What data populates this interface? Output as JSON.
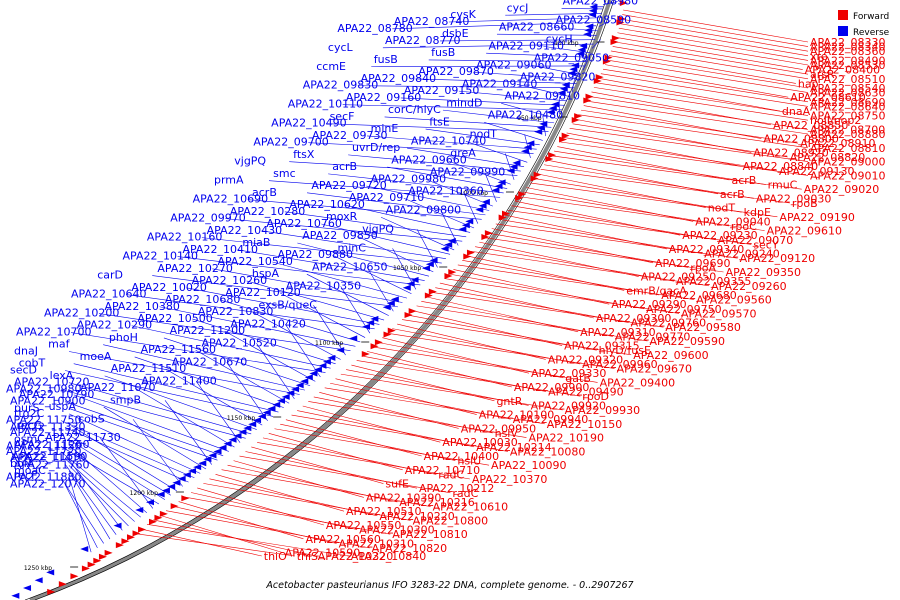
{
  "title": "Acetobacter pasteurianus IFO 3283-22 DNA, complete genome. - 0..2907267",
  "legend": [
    {
      "name": "Forward",
      "color": "#ee0000"
    },
    {
      "name": "Reverse",
      "color": "#0000ee"
    }
  ],
  "colors": {
    "forward": "#ee0000",
    "reverse": "#0000ee",
    "backbone": "#888888",
    "tick": "#000000"
  },
  "ticks": [
    "900 kbp",
    "950 kbp",
    "1000 kbp",
    "1050 kbp",
    "1100 kbp",
    "1150 kbp",
    "1200 kbp",
    "1250 kbp"
  ],
  "reverse_labels": [
    "APA22_08980",
    "cycJ",
    "cysK",
    "APA22_08740",
    "APA22_08780",
    "APA22_08590",
    "APA22_08660",
    "dsbE",
    "APA22_08770",
    "cycL",
    "cycH",
    "APA22_09110",
    "fusB",
    "fusB",
    "ccmE",
    "APA22_09050",
    "APA22_09060",
    "APA22_09870",
    "APA22_09840",
    "APA22_09830",
    "APA22_09820",
    "APA22_09140",
    "APA22_09150",
    "APA22_09160",
    "APA22_10110",
    "APA22_09810",
    "mindD",
    "corC/hlyC",
    "secF",
    "APA22_10490",
    "APA22_10480",
    "ftsE",
    "minE",
    "APA22_09730",
    "APA22_09700",
    "nodT",
    "APA22_10740",
    "uvrD/rep",
    "ftsX",
    "vjgPQ",
    "greA",
    "APA22_09660",
    "acrB",
    "smc",
    "prmA",
    "APA22_09990",
    "APA22_09980",
    "APA22_09720",
    "acrB",
    "APA22_10690",
    "APA22_10360",
    "APA22_09710",
    "APA22_10620",
    "APA22_10280",
    "APA22_09970",
    "APA22_09800",
    "moxR",
    "APA22_10760",
    "APA22_10430",
    "APA22_10160",
    "vjgPQ",
    "APA22_09850",
    "miaB",
    "APA22_10410",
    "APA22_10140",
    "minC",
    "APA22_09880",
    "APA22_10540",
    "APA22_10270",
    "carD",
    "APA22_10650",
    "hspA",
    "APA22_10260",
    "APA22_10020",
    "APA22_10640",
    "APA22_10350",
    "APA22_10120",
    "APA22_10680",
    "APA22_10380",
    "APA22_10200",
    "exsB/queC",
    "APA22_10830",
    "APA22_10500",
    "APA22_10290",
    "APA22_10700",
    "APA22_10420",
    "APA22_11200",
    "phoH",
    "maf",
    "dnaJ",
    "APA22_10520",
    "APA22_11560",
    "moeA",
    "cobT",
    "secD",
    "APA22_10670",
    "APA22_11510",
    "lexA",
    "APA22_10720",
    "APA22_10980",
    "APA22_11400",
    "APA22_11070",
    "APA22_10790",
    "APA22_10900",
    "purS",
    "smpB",
    "uspA",
    "ttg2C",
    "APA22_11750",
    "APA22_11330",
    "cobS",
    "recG",
    "APA22_11740",
    "osmC",
    "APA22_11150",
    "APA22_11730",
    "APA22_11260",
    "APA22_11720",
    "APA22_11410",
    "APA22_11760",
    "APA22_11590",
    "bolA",
    "moaC",
    "APA22_11880",
    "APA22_12070",
    "recF"
  ],
  "forward_labels": [
    "APA22_08330",
    "APA22_08340",
    "APA22_08360",
    "xre",
    "APA22_08490",
    "APA22_08530",
    "APA22_08400",
    "arsR",
    "APA22_08510",
    "hap",
    "APA22_08540",
    "APA22_08630",
    "APA22_08610",
    "APA22_08690",
    "APA22_08640",
    "dnaA",
    "APA22_08750",
    "nolI/nop2",
    "APA22_08850",
    "APA22_08700",
    "APA22_08880",
    "APA22_08800",
    "APA22_08910",
    "APA22_08810",
    "APA22_08920",
    "APA22_08820",
    "APA22_09000",
    "APA22_08840",
    "APA22_09130",
    "APA22_09010",
    "acrB",
    "rmuC",
    "APA22_09020",
    "acrB",
    "APA22_09030",
    "rpoB",
    "nodT",
    "kdpE",
    "APA22_09190",
    "APA22_09040",
    "rpoC",
    "APA22_09610",
    "APA22_09230",
    "APA22_09070",
    "secY",
    "APA22_09340",
    "APA22_09240",
    "APA22_09120",
    "APA22_09690",
    "rpoA",
    "APA22_09350",
    "APA22_09250",
    "APA22_09355",
    "APA22_09260",
    "emrB/qacA",
    "APA22_09680",
    "APA22_09560",
    "APA22_09290",
    "APA22_09750",
    "APA22_09570",
    "APA22_09300",
    "APA22_09760",
    "APA22_09580",
    "APA22_09310",
    "APA22_09770",
    "APA22_09590",
    "APA22_09315",
    "hlyD/fusE",
    "APA22_09600",
    "APA22_09320",
    "APA22_09960",
    "APA22_09670",
    "APA22_09330",
    "gatB",
    "APA22_09400",
    "APA22_09900",
    "APA22_09490",
    "rpoD",
    "gntR",
    "APA22_09920",
    "APA22_09930",
    "APA22_10100",
    "APA22_09940",
    "APA22_10150",
    "APA22_09950",
    "hslV",
    "APA22_10190",
    "APA22_10030",
    "APA22_10214",
    "APA22_10080",
    "APA22_10400",
    "hslU",
    "APA22_10090",
    "APA22_10710",
    "radC",
    "APA22_10370",
    "sufE",
    "APA22_10212",
    "radC",
    "APA22_10390",
    "APA22_10216",
    "APA22_10610",
    "APA22_10510",
    "APA22_10220",
    "APA22_10800",
    "APA22_10550",
    "APA22_10300",
    "APA22_10810",
    "APA22_10560",
    "APA22_10310",
    "APA22_10820",
    "APA22_10590",
    "APA22_10320",
    "APA22_10840",
    "thiO",
    "thiS"
  ]
}
